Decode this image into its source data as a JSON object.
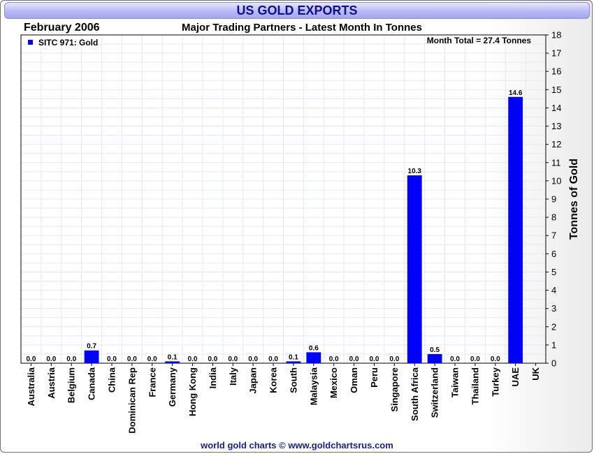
{
  "header": {
    "title": "US GOLD EXPORTS",
    "date": "February 2006",
    "subtitle": "Major Trading Partners - Latest Month In Tonnes"
  },
  "footer": "world gold charts © www.goldchartsrus.com",
  "colors": {
    "bar": "#0000ff",
    "title_text": "#0e0e8c"
  },
  "chart_data": {
    "type": "bar",
    "title": "US GOLD EXPORTS",
    "subtitle": "Major Trading Partners - Latest Month In Tonnes",
    "ylabel": "Tonnes of Gold",
    "xlabel": "",
    "ylim": [
      0,
      18
    ],
    "ytick_step": 1,
    "grid": true,
    "legend": {
      "entry": "SITC 971: Gold",
      "position": "top-left"
    },
    "annotation": "Month Total = 27.4 Tonnes",
    "categories": [
      "Australia",
      "Austria",
      "Belgium",
      "Canada",
      "China",
      "Dominican Rep",
      "France",
      "Germany",
      "Hong Kong",
      "India",
      "Italy",
      "Japan",
      "Korea",
      "South",
      "Malaysia",
      "Mexico",
      "Oman",
      "Peru",
      "Singapore",
      "South Africa",
      "Switzerland",
      "Taiwan",
      "Thailand",
      "Turkey",
      "UAE",
      "UK"
    ],
    "values": [
      0.0,
      0.0,
      0.0,
      0.7,
      0.0,
      0.0,
      0.0,
      0.1,
      0.0,
      0.0,
      0.0,
      0.0,
      0.0,
      0.1,
      0.6,
      0.0,
      0.0,
      0.0,
      0.0,
      10.3,
      0.5,
      0.0,
      0.0,
      0.0,
      14.6,
      null
    ],
    "data_labels": [
      "0.0",
      "0.0",
      "0.0",
      "0.7",
      "0.0",
      "0.0",
      "0.0",
      "0.1",
      "0.0",
      "0.0",
      "0.0",
      "0.0",
      "0.0",
      "0.1",
      "0.6",
      "0.0",
      "0.0",
      "0.0",
      "0.0",
      "10.3",
      "0.5",
      "0.0",
      "0.0",
      "0.0",
      "14.6",
      ""
    ]
  }
}
